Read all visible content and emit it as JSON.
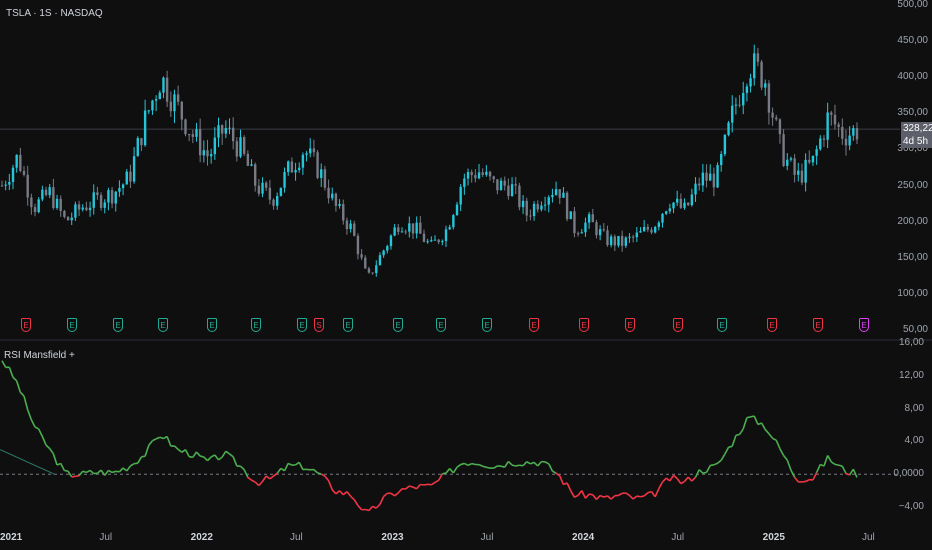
{
  "header": {
    "symbol_line": "TSLA · 1S · NASDAQ"
  },
  "price_pane": {
    "current_price_label": "328,22",
    "countdown_label": "4d 5h",
    "y_ticks": [
      "500,00",
      "450,00",
      "400,00",
      "350,00",
      "300,00",
      "250,00",
      "200,00",
      "150,00",
      "100,00",
      "50,00"
    ]
  },
  "indicator_pane": {
    "title": "RSI Mansfield +",
    "y_ticks": [
      "16,00",
      "12,00",
      "8,00",
      "4,00",
      "0,0000",
      "−4,00"
    ]
  },
  "x_axis": {
    "ticks": [
      {
        "label": "2021",
        "bold": true
      },
      {
        "label": "Jul",
        "bold": false
      },
      {
        "label": "2022",
        "bold": true
      },
      {
        "label": "Jul",
        "bold": false
      },
      {
        "label": "2023",
        "bold": true
      },
      {
        "label": "Jul",
        "bold": false
      },
      {
        "label": "2024",
        "bold": true
      },
      {
        "label": "Jul",
        "bold": false
      },
      {
        "label": "2025",
        "bold": true
      },
      {
        "label": "Jul",
        "bold": false
      }
    ]
  },
  "events": [
    {
      "letter": "E",
      "color": "#f23645"
    },
    {
      "letter": "E",
      "color": "#22ab94"
    },
    {
      "letter": "E",
      "color": "#22ab94"
    },
    {
      "letter": "E",
      "color": "#22ab94"
    },
    {
      "letter": "E",
      "color": "#22ab94"
    },
    {
      "letter": "E",
      "color": "#22ab94"
    },
    {
      "letter": "E",
      "color": "#22ab94"
    },
    {
      "letter": "S",
      "color": "#f23645"
    },
    {
      "letter": "E",
      "color": "#22ab94"
    },
    {
      "letter": "E",
      "color": "#22ab94"
    },
    {
      "letter": "E",
      "color": "#22ab94"
    },
    {
      "letter": "E",
      "color": "#22ab94"
    },
    {
      "letter": "E",
      "color": "#f23645"
    },
    {
      "letter": "E",
      "color": "#f23645"
    },
    {
      "letter": "E",
      "color": "#f23645"
    },
    {
      "letter": "E",
      "color": "#f23645"
    },
    {
      "letter": "E",
      "color": "#22ab94"
    },
    {
      "letter": "E",
      "color": "#f23645"
    },
    {
      "letter": "E",
      "color": "#f23645"
    },
    {
      "letter": "E",
      "color": "#e040fb"
    }
  ],
  "colors": {
    "up_candle": "#26c6da",
    "down_candle": "#787b86",
    "rsi_positive": "#4caf50",
    "rsi_negative": "#f23645",
    "background": "#0f0f0f"
  },
  "chart_data": [
    {
      "type": "candlestick",
      "title": "TSLA · 1S · NASDAQ",
      "ylim": [
        50,
        500
      ],
      "x_range": [
        "2021-01",
        "2025-07"
      ],
      "weekly_close_approx": [
        {
          "date": "2021-01",
          "close": 250
        },
        {
          "date": "2021-02",
          "close": 290
        },
        {
          "date": "2021-03",
          "close": 220
        },
        {
          "date": "2021-04",
          "close": 240
        },
        {
          "date": "2021-05",
          "close": 200
        },
        {
          "date": "2021-06",
          "close": 220
        },
        {
          "date": "2021-07",
          "close": 230
        },
        {
          "date": "2021-08",
          "close": 240
        },
        {
          "date": "2021-09",
          "close": 260
        },
        {
          "date": "2021-10",
          "close": 340
        },
        {
          "date": "2021-11",
          "close": 400
        },
        {
          "date": "2021-12",
          "close": 360
        },
        {
          "date": "2022-01",
          "close": 320
        },
        {
          "date": "2022-02",
          "close": 290
        },
        {
          "date": "2022-03",
          "close": 330
        },
        {
          "date": "2022-04",
          "close": 300
        },
        {
          "date": "2022-05",
          "close": 250
        },
        {
          "date": "2022-06",
          "close": 230
        },
        {
          "date": "2022-07",
          "close": 270
        },
        {
          "date": "2022-08",
          "close": 300
        },
        {
          "date": "2022-09",
          "close": 270
        },
        {
          "date": "2022-10",
          "close": 220
        },
        {
          "date": "2022-11",
          "close": 190
        },
        {
          "date": "2022-12",
          "close": 120
        },
        {
          "date": "2023-01",
          "close": 160
        },
        {
          "date": "2023-02",
          "close": 200
        },
        {
          "date": "2023-03",
          "close": 190
        },
        {
          "date": "2023-04",
          "close": 165
        },
        {
          "date": "2023-05",
          "close": 190
        },
        {
          "date": "2023-06",
          "close": 260
        },
        {
          "date": "2023-07",
          "close": 270
        },
        {
          "date": "2023-08",
          "close": 250
        },
        {
          "date": "2023-09",
          "close": 250
        },
        {
          "date": "2023-10",
          "close": 210
        },
        {
          "date": "2023-11",
          "close": 235
        },
        {
          "date": "2023-12",
          "close": 250
        },
        {
          "date": "2024-01",
          "close": 190
        },
        {
          "date": "2024-02",
          "close": 200
        },
        {
          "date": "2024-03",
          "close": 175
        },
        {
          "date": "2024-04",
          "close": 170
        },
        {
          "date": "2024-05",
          "close": 180
        },
        {
          "date": "2024-06",
          "close": 195
        },
        {
          "date": "2024-07",
          "close": 230
        },
        {
          "date": "2024-08",
          "close": 215
        },
        {
          "date": "2024-09",
          "close": 260
        },
        {
          "date": "2024-10",
          "close": 260
        },
        {
          "date": "2024-11",
          "close": 350
        },
        {
          "date": "2024-12",
          "close": 420
        },
        {
          "date": "2025-01",
          "close": 400
        },
        {
          "date": "2025-02",
          "close": 300
        },
        {
          "date": "2025-03",
          "close": 260
        },
        {
          "date": "2025-04",
          "close": 280
        },
        {
          "date": "2025-05",
          "close": 345
        },
        {
          "date": "2025-06",
          "close": 320
        },
        {
          "date": "2025-07",
          "close": 328.22
        }
      ]
    },
    {
      "type": "line",
      "title": "RSI Mansfield +",
      "ylim": [
        -5,
        16
      ],
      "series": [
        {
          "values": [
            {
              "date": "2021-01",
              "value": 14
            },
            {
              "date": "2021-02",
              "value": 11
            },
            {
              "date": "2021-03",
              "value": 6
            },
            {
              "date": "2021-04",
              "value": 3
            },
            {
              "date": "2021-05",
              "value": 0
            },
            {
              "date": "2021-06",
              "value": 0
            },
            {
              "date": "2021-07",
              "value": 0.3
            },
            {
              "date": "2021-08",
              "value": 0.2
            },
            {
              "date": "2021-09",
              "value": 1
            },
            {
              "date": "2021-10",
              "value": 2.5
            },
            {
              "date": "2021-11",
              "value": 5
            },
            {
              "date": "2021-12",
              "value": 3
            },
            {
              "date": "2022-01",
              "value": 2.5
            },
            {
              "date": "2022-02",
              "value": 1.5
            },
            {
              "date": "2022-03",
              "value": 2.5
            },
            {
              "date": "2022-04",
              "value": 1
            },
            {
              "date": "2022-05",
              "value": -1
            },
            {
              "date": "2022-06",
              "value": -0.5
            },
            {
              "date": "2022-07",
              "value": 1
            },
            {
              "date": "2022-08",
              "value": 1
            },
            {
              "date": "2022-09",
              "value": 0
            },
            {
              "date": "2022-10",
              "value": -2
            },
            {
              "date": "2022-11",
              "value": -2.5
            },
            {
              "date": "2022-12",
              "value": -5
            },
            {
              "date": "2023-01",
              "value": -3
            },
            {
              "date": "2023-02",
              "value": -2
            },
            {
              "date": "2023-03",
              "value": -1.5
            },
            {
              "date": "2023-04",
              "value": -1.5
            },
            {
              "date": "2023-05",
              "value": 0
            },
            {
              "date": "2023-06",
              "value": 1.5
            },
            {
              "date": "2023-07",
              "value": 1.5
            },
            {
              "date": "2023-08",
              "value": 1
            },
            {
              "date": "2023-09",
              "value": 1.5
            },
            {
              "date": "2023-10",
              "value": 1.5
            },
            {
              "date": "2023-11",
              "value": 1.5
            },
            {
              "date": "2023-12",
              "value": 0
            },
            {
              "date": "2024-01",
              "value": -2.5
            },
            {
              "date": "2024-02",
              "value": -2.5
            },
            {
              "date": "2024-03",
              "value": -3
            },
            {
              "date": "2024-04",
              "value": -2.5
            },
            {
              "date": "2024-05",
              "value": -3
            },
            {
              "date": "2024-06",
              "value": -2.5
            },
            {
              "date": "2024-07",
              "value": -0.5
            },
            {
              "date": "2024-08",
              "value": -1
            },
            {
              "date": "2024-09",
              "value": 0.5
            },
            {
              "date": "2024-10",
              "value": 1
            },
            {
              "date": "2024-11",
              "value": 4
            },
            {
              "date": "2024-12",
              "value": 7
            },
            {
              "date": "2025-01",
              "value": 6
            },
            {
              "date": "2025-02",
              "value": 3
            },
            {
              "date": "2025-03",
              "value": -0.5
            },
            {
              "date": "2025-04",
              "value": -0.5
            },
            {
              "date": "2025-05",
              "value": 2
            },
            {
              "date": "2025-06",
              "value": 0.5
            },
            {
              "date": "2025-07",
              "value": 0
            }
          ]
        }
      ]
    }
  ]
}
